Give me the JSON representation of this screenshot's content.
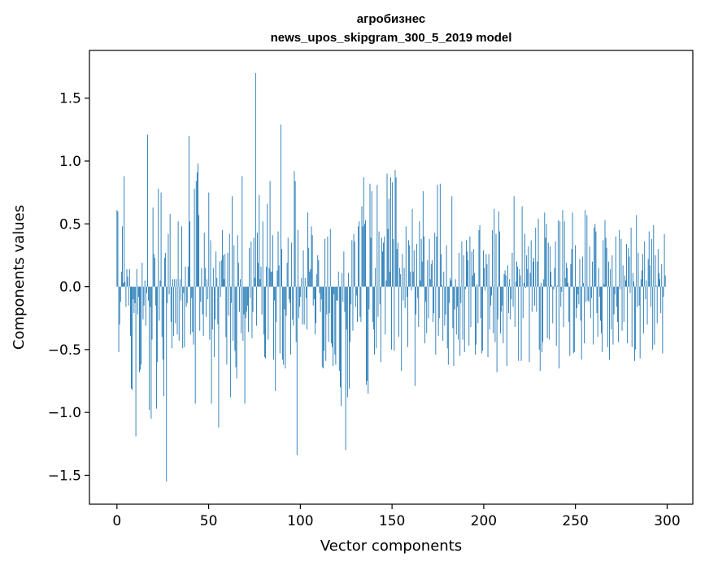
{
  "chart_data": {
    "type": "bar",
    "title": "агробизнес",
    "subtitle": "news_upos_skipgram_300_5_2019 model",
    "xlabel": "Vector components",
    "ylabel": "Components values",
    "xlim": [
      -15,
      314
    ],
    "ylim": [
      -1.73,
      1.88
    ],
    "xticks": [
      0,
      50,
      100,
      150,
      200,
      250,
      300
    ],
    "xtick_labels": [
      "0",
      "50",
      "100",
      "150",
      "200",
      "250",
      "300"
    ],
    "yticks": [
      -1.5,
      -1.0,
      -0.5,
      0.0,
      0.5,
      1.0,
      1.5
    ],
    "ytick_labels": [
      "−1.5",
      "−1.0",
      "−0.5",
      "0.0",
      "0.5",
      "1.0",
      "1.5"
    ],
    "grid": false,
    "bar_color": "#1f77b4",
    "values": [
      0.61,
      0.6,
      -0.52,
      -0.3,
      -0.12,
      0.12,
      0.48,
      0.03,
      0.88,
      0.04,
      -0.16,
      0.14,
      0.08,
      -0.15,
      0.14,
      -0.39,
      -0.81,
      -0.82,
      -0.1,
      -0.21,
      -0.13,
      -1.19,
      0.14,
      -0.22,
      -0.08,
      -0.68,
      -0.66,
      -0.62,
      0.19,
      -0.26,
      -0.15,
      0.05,
      -0.31,
      -0.05,
      1.21,
      -0.11,
      -0.98,
      -0.16,
      -1.05,
      -0.42,
      0.63,
      0.26,
      0.23,
      -0.15,
      -0.97,
      -0.6,
      0.78,
      -0.27,
      0.05,
      0.75,
      -0.4,
      -0.58,
      -0.87,
      0.23,
      0.27,
      -1.55,
      -0.13,
      0.42,
      -0.06,
      0.58,
      -0.28,
      -0.49,
      0.06,
      -0.39,
      0.06,
      -0.29,
      0.06,
      -0.38,
      0.52,
      -0.43,
      0.06,
      -0.11,
      0.48,
      -0.49,
      -0.05,
      -0.48,
      0.16,
      -0.16,
      -0.13,
      0.16,
      1.2,
      0.52,
      -0.38,
      -0.09,
      -0.36,
      -0.46,
      0.78,
      -0.93,
      0.84,
      0.91,
      0.98,
      0.57,
      -0.35,
      -0.12,
      0.15,
      -0.22,
      -0.39,
      0.43,
      0.15,
      -0.24,
      0.06,
      -0.1,
      0.75,
      -0.42,
      0.37,
      -0.93,
      -0.34,
      0.15,
      -0.56,
      -0.26,
      0.28,
      0.07,
      -0.3,
      -1.12,
      0.2,
      -0.08,
      0.21,
      0.45,
      0.25,
      0.06,
      0.26,
      -0.4,
      -0.62,
      0.27,
      -0.23,
      0.42,
      -0.88,
      -0.13,
      0.72,
      -0.43,
      0.33,
      -0.51,
      -0.64,
      -0.73,
      0.41,
      0.19,
      -0.2,
      0.06,
      -0.37,
      0.88,
      -0.43,
      -0.22,
      -0.93,
      -0.25,
      -0.2,
      -0.15,
      -0.36,
      0.31,
      -0.09,
      0.36,
      -0.41,
      -0.2,
      0.39,
      0.07,
      1.7,
      -0.31,
      0.43,
      0.19,
      0.73,
      0.06,
      0.16,
      -0.22,
      0.52,
      -0.38,
      -0.56,
      -0.57,
      0.16,
      0.66,
      -0.42,
      0.15,
      0.84,
      0.12,
      0.12,
      0.41,
      -0.58,
      -0.11,
      -0.83,
      -0.28,
      0.13,
      0.44,
      0.17,
      -0.53,
      1.29,
      0.3,
      -0.58,
      -0.62,
      -0.18,
      -0.65,
      -0.23,
      0.19,
      0.39,
      -0.1,
      -0.13,
      -0.54,
      0.35,
      -0.26,
      -0.31,
      0.92,
      0.84,
      -0.44,
      -1.34,
      0.45,
      -0.25,
      -0.16,
      -0.08,
      0.07,
      -0.3,
      0.29,
      -0.3,
      0.07,
      -0.09,
      -0.34,
      0.59,
      0.31,
      0.12,
      0.14,
      0.48,
      0.41,
      -0.15,
      -0.1,
      -0.38,
      -0.29,
      0.1,
      0.25,
      0.21,
      -0.05,
      -0.2,
      -0.1,
      -0.64,
      -0.65,
      -0.51,
      0.38,
      -0.59,
      -0.22,
      0.4,
      -0.44,
      -0.21,
      0.46,
      -0.45,
      -0.48,
      -0.63,
      -0.06,
      -0.54,
      -0.62,
      -0.11,
      -0.11,
      0.12,
      -0.67,
      -0.8,
      -0.95,
      0.11,
      -0.12,
      0.28,
      -0.2,
      -1.3,
      -0.34,
      -0.88,
      0.11,
      -0.81,
      -0.44,
      -0.14,
      0.37,
      -0.35,
      0.42,
      0.36,
      -0.16,
      -0.07,
      -0.28,
      0.48,
      0.52,
      -0.24,
      -0.28,
      0.64,
      0.48,
      0.87,
      0.5,
      0.53,
      -0.78,
      -0.75,
      -0.85,
      -0.18,
      0.82,
      0.39,
      0.76,
      -0.28,
      -0.34,
      -0.54,
      0.15,
      -0.49,
      0.81,
      -0.24,
      0.44,
      -0.14,
      -0.6,
      0.39,
      0.28,
      0.35,
      0.4,
      -0.38,
      0.05,
      0.9,
      0.46,
      0.7,
      0.12,
      0.87,
      -0.5,
      0.83,
      0.38,
      -0.51,
      0.93,
      0.87,
      0.3,
      0.35,
      -0.4,
      0.15,
      0.1,
      -0.67,
      0.26,
      -0.11,
      0.15,
      -0.17,
      0.48,
      -0.08,
      -0.48,
      0.37,
      0.33,
      0.12,
      -0.03,
      0.62,
      0.12,
      0.29,
      -0.79,
      -0.22,
      0.34,
      -0.09,
      -0.32,
      0.52,
      0.05,
      0.38,
      0.2,
      0.76,
      0.4,
      -0.45,
      -0.12,
      -0.37,
      0.21,
      -0.25,
      0.38,
      0.06,
      0.18,
      0.21,
      -0.28,
      -0.21,
      0.43,
      -0.54,
      0.4,
      0.81,
      -0.39,
      -0.25,
      0.82,
      0.26,
      0.01,
      -0.43,
      0.12,
      -0.31,
      -0.22,
      0.33,
      -0.49,
      -0.62,
      -0.13,
      0.07,
      0.05,
      0.72,
      -0.33,
      -0.63,
      -0.18,
      0.06,
      -0.38,
      -0.16,
      -0.42,
      0.27,
      -0.55,
      -0.13,
      0.36,
      -0.42,
      0.25,
      -0.52,
      -0.02,
      0.37,
      0.28,
      0.21,
      -0.47,
      0.4,
      -0.32,
      0.28,
      0.09,
      0.3,
      0.11,
      -0.54,
      -0.46,
      0.02,
      -0.29,
      0.45,
      0.49,
      -0.25,
      -0.53,
      -0.51,
      0.29,
      0.15,
      -0.03,
      0.26,
      0.18,
      -0.56,
      0.26,
      -0.34,
      -0.15,
      -0.07,
      0.45,
      -0.37,
      0.62,
      -0.44,
      0.42,
      -0.68,
      -0.26,
      0.6,
      0.44,
      -0.37,
      -0.2,
      -0.15,
      -0.45,
      0.1,
      0.13,
      0.09,
      -0.63,
      0.17,
      -0.21,
      0.06,
      -0.26,
      -0.1,
      0.27,
      -0.16,
      0.72,
      -0.32,
      0.04,
      0.2,
      0.16,
      -0.59,
      0.14,
      0.09,
      -0.59,
      0.64,
      -0.25,
      0.03,
      0.42,
      -0.01,
      0.25,
      0.14,
      0.32,
      -0.6,
      0.11,
      0.37,
      -0.2,
      0.2,
      0.23,
      -0.15,
      0.47,
      -0.2,
      0.2,
      0.54,
      -0.5,
      -0.67,
      0.03,
      -0.52,
      -0.44,
      0.06,
      0.59,
      0.39,
      0.5,
      -0.41,
      0.35,
      -0.42,
      0.32,
      0.12,
      0.01,
      -0.29,
      -0.02,
      0.15,
      0.36,
      -0.47,
      0.01,
      0.53,
      -0.65,
      0.52,
      -0.16,
      -0.04,
      0.61,
      -0.32,
      0.52,
      0.07,
      0.19,
      0.15,
      0.03,
      -0.28,
      -0.55,
      0.18,
      0.3,
      0.59,
      -0.53,
      -0.52,
      0.33,
      -0.25,
      -0.17,
      -0.06,
      -0.14,
      0.22,
      -0.27,
      -0.58,
      0.24,
      0.03,
      -0.45,
      0.61,
      -0.12,
      0.57,
      -0.11,
      -0.12,
      0.32,
      -0.25,
      -0.09,
      0.2,
      -0.46,
      0.47,
      0.5,
      0.44,
      -0.21,
      -0.4,
      0.15,
      -0.08,
      -0.27,
      -0.37,
      -0.52,
      0.37,
      0.02,
      0.53,
      0.39,
      0.31,
      -0.48,
      0.2,
      -0.58,
      0.14,
      -0.34,
      0.25,
      -0.46,
      -0.22,
      -0.06,
      0.4,
      -0.16,
      -0.28,
      -0.44,
      0.45,
      -0.02,
      0.38,
      -0.35,
      0.17,
      -0.28,
      0.09,
      0.05,
      0.34,
      -0.45,
      0.31,
      0.24,
      -0.05,
      0.47,
      -0.48,
      0.11,
      0.04,
      -0.59,
      -0.5,
      0.57,
      -0.16,
      0.27,
      -0.15,
      -0.57,
      0.06,
      0.13,
      0.26,
      -0.37,
      0.36,
      -0.1,
      0.05,
      -0.3,
      0.22,
      0.44,
      0.17,
      -0.16,
      0.38,
      -0.5,
      0.49,
      -0.46,
      0.25,
      0.01,
      -0.29,
      0.3,
      0.11,
      0.06,
      -0.21,
      0.18,
      -0.53,
      -0.08,
      0.42,
      0.09
    ]
  }
}
